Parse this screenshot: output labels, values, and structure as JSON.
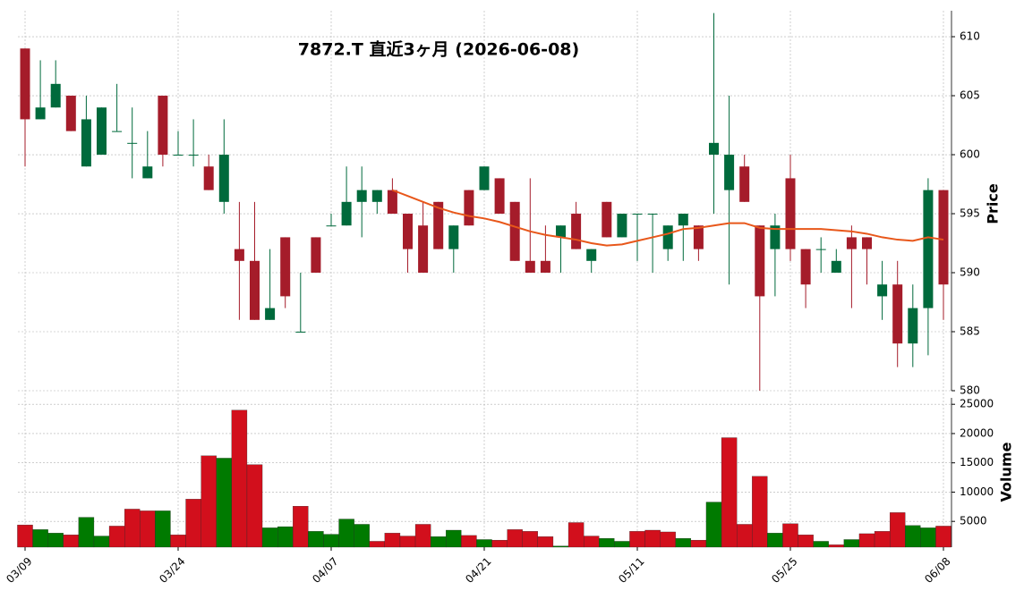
{
  "chart_data": {
    "type": "candlestick",
    "title": "7872.T  直近3ヶ月  (2026-06-08)",
    "ylabel": "Price",
    "up_color": "#006a3c",
    "down_color": "#a51c2a",
    "open": [
      609,
      603,
      604,
      605,
      599,
      600,
      602,
      601,
      598,
      605,
      600,
      600,
      599,
      596,
      592,
      591,
      586,
      593,
      585,
      593,
      594,
      594,
      596,
      596,
      597,
      595,
      594,
      596,
      592,
      597,
      597,
      598,
      596,
      591,
      591,
      593,
      595,
      591,
      596,
      593,
      595,
      595,
      592,
      594,
      594,
      600,
      597,
      599,
      594,
      592,
      598,
      592,
      592,
      590,
      593,
      593,
      588,
      589,
      584,
      587,
      597
    ],
    "high": [
      609,
      608,
      608,
      605,
      605,
      604,
      606,
      604,
      602,
      605,
      602,
      603,
      600,
      603,
      596,
      596,
      592,
      593,
      590,
      593,
      595,
      599,
      599,
      597,
      598,
      595,
      596,
      596,
      594,
      597,
      599,
      598,
      596,
      598,
      594,
      594,
      596,
      592,
      596,
      595,
      595,
      595,
      594,
      595,
      594,
      612,
      605,
      600,
      594,
      595,
      600,
      592,
      593,
      592,
      594,
      593,
      591,
      591,
      589,
      598,
      597
    ],
    "low": [
      599,
      603,
      604,
      602,
      599,
      600,
      602,
      598,
      598,
      599,
      600,
      599,
      597,
      595,
      586,
      586,
      586,
      587,
      585,
      590,
      594,
      594,
      593,
      595,
      595,
      590,
      590,
      592,
      590,
      594,
      597,
      595,
      591,
      590,
      590,
      590,
      592,
      590,
      593,
      593,
      591,
      590,
      591,
      591,
      591,
      595,
      589,
      596,
      580,
      588,
      591,
      587,
      590,
      590,
      587,
      589,
      586,
      582,
      582,
      583,
      586
    ],
    "close": [
      603,
      604,
      606,
      602,
      603,
      604,
      602,
      601,
      599,
      600,
      600,
      600,
      597,
      600,
      591,
      586,
      587,
      588,
      585,
      590,
      594,
      596,
      597,
      597,
      595,
      592,
      590,
      592,
      594,
      594,
      599,
      595,
      591,
      590,
      590,
      594,
      592,
      592,
      593,
      595,
      595,
      595,
      594,
      595,
      592,
      601,
      600,
      596,
      588,
      594,
      592,
      589,
      592,
      591,
      592,
      592,
      589,
      584,
      587,
      597,
      589
    ],
    "moving_average": {
      "color": "#e8571a",
      "values": [
        null,
        null,
        null,
        null,
        null,
        null,
        null,
        null,
        null,
        null,
        null,
        null,
        null,
        null,
        null,
        null,
        null,
        null,
        null,
        null,
        null,
        null,
        null,
        null,
        597,
        596.5,
        596,
        595.5,
        595.1,
        594.8,
        594.6,
        594.3,
        593.9,
        593.5,
        593.2,
        593,
        592.8,
        592.5,
        592.3,
        592.4,
        592.7,
        593,
        593.3,
        593.7,
        593.8,
        594,
        594.2,
        594.2,
        593.8,
        593.7,
        593.7,
        593.7,
        593.7,
        593.6,
        593.5,
        593.3,
        593,
        592.8,
        592.7,
        593,
        592.8
      ]
    },
    "ylim": [
      580,
      612.2
    ],
    "yticks": [
      580,
      585,
      590,
      595,
      600,
      605,
      610
    ],
    "xticks": [
      {
        "value": 0,
        "label": "03/09"
      },
      {
        "value": 10,
        "label": "03/24"
      },
      {
        "value": 20,
        "label": "04/07"
      },
      {
        "value": 30,
        "label": "04/21"
      },
      {
        "value": 40,
        "label": "05/11"
      },
      {
        "value": 50,
        "label": "05/25"
      },
      {
        "value": 60,
        "label": "06/08"
      }
    ],
    "grid": true,
    "volume": {
      "ylabel": "Volume",
      "up_color": "#007a00",
      "down_color": "#d20f1c",
      "values": [
        4400,
        3600,
        3000,
        2700,
        5700,
        2500,
        4200,
        7100,
        6800,
        6800,
        2700,
        8800,
        16200,
        15800,
        24000,
        14700,
        3900,
        4100,
        7600,
        3300,
        2800,
        5400,
        4500,
        1600,
        3000,
        2500,
        4500,
        2400,
        3500,
        2600,
        1900,
        1800,
        3600,
        3300,
        2400,
        800,
        4800,
        2500,
        2100,
        1600,
        3300,
        3500,
        3200,
        2100,
        1800,
        8300,
        19300,
        4500,
        12700,
        3000,
        4600,
        2700,
        1600,
        1000,
        1900,
        2900,
        3300,
        6500,
        4300,
        3900,
        4200
      ],
      "ylim": [
        600,
        26100
      ],
      "yticks": [
        5000,
        10000,
        15000,
        20000,
        25000
      ]
    }
  }
}
